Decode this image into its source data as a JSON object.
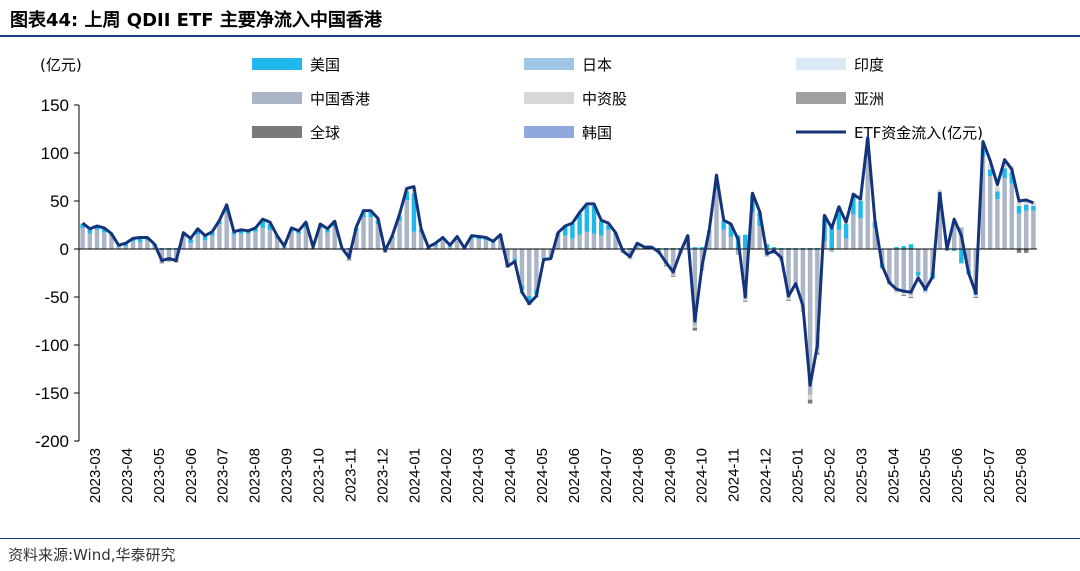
{
  "header": {
    "title": "图表44:  上周 QDII ETF 主要净流入中国香港"
  },
  "footer": {
    "source": "资料来源:Wind,华泰研究"
  },
  "chart_data": {
    "type": "bar",
    "title": "上周 QDII ETF 主要净流入中国香港",
    "ylabel": "(亿元)",
    "xlabel": "",
    "ylim": [
      -200,
      150
    ],
    "yticks": [
      150,
      100,
      50,
      0,
      -50,
      -100,
      -150,
      -200
    ],
    "month_labels": [
      "2023-03",
      "2023-04",
      "2023-05",
      "2023-06",
      "2023-07",
      "2023-08",
      "2023-09",
      "2023-10",
      "2023-11",
      "2023-12",
      "2024-01",
      "2024-02",
      "2024-03",
      "2024-04",
      "2024-05",
      "2024-06",
      "2024-07",
      "2024-08",
      "2024-09",
      "2024-10",
      "2024-11",
      "2024-12",
      "2025-01",
      "2025-02",
      "2025-03",
      "2025-04",
      "2025-05",
      "2025-06",
      "2025-07",
      "2025-08"
    ],
    "legend": [
      {
        "name": "美国",
        "color": "#1fb8e8",
        "kind": "bar"
      },
      {
        "name": "日本",
        "color": "#9ec7e6",
        "kind": "bar"
      },
      {
        "name": "印度",
        "color": "#dbe9f6",
        "kind": "bar"
      },
      {
        "name": "中国香港",
        "color": "#acb5c5",
        "kind": "bar"
      },
      {
        "name": "中资股",
        "color": "#d7d7d7",
        "kind": "bar"
      },
      {
        "name": "亚洲",
        "color": "#a0a0a0",
        "kind": "bar"
      },
      {
        "name": "全球",
        "color": "#7a7a7a",
        "kind": "bar"
      },
      {
        "name": "韩国",
        "color": "#8fa8dd",
        "kind": "bar"
      },
      {
        "name": "ETF资金流入(亿元)",
        "color": "#13347a",
        "kind": "line"
      }
    ],
    "etf_flow": [
      27,
      21,
      24,
      22,
      16,
      4,
      6,
      11,
      12,
      12,
      5,
      -12,
      -10,
      -12,
      17,
      11,
      21,
      14,
      18,
      30,
      46,
      18,
      20,
      19,
      22,
      31,
      28,
      14,
      3,
      22,
      19,
      28,
      2,
      26,
      21,
      29,
      1,
      -9,
      23,
      40,
      40,
      32,
      -2,
      14,
      36,
      63,
      65,
      21,
      2,
      6,
      12,
      4,
      13,
      1,
      14,
      13,
      12,
      8,
      15,
      -18,
      -13,
      -45,
      -57,
      -49,
      -11,
      -10,
      17,
      24,
      27,
      38,
      47,
      47,
      30,
      27,
      17,
      -2,
      -8,
      6,
      2,
      2,
      -3,
      -14,
      -24,
      -3,
      14,
      -75,
      -17,
      20,
      77,
      30,
      26,
      10,
      -50,
      58,
      39,
      -5,
      -2,
      -9,
      -49,
      -36,
      -59,
      -142,
      -101,
      35,
      22,
      44,
      28,
      57,
      52,
      116,
      30,
      -17,
      -35,
      -42,
      -44,
      -45,
      -30,
      -42,
      -29,
      58,
      0,
      31,
      14,
      -25,
      -46,
      112,
      92,
      67,
      93,
      83,
      50,
      51,
      48
    ],
    "bars": {
      "us": [
        4,
        4,
        3,
        4,
        1,
        1,
        2,
        2,
        4,
        2,
        2,
        1,
        1,
        1,
        2,
        4,
        5,
        4,
        3,
        3,
        6,
        2,
        3,
        2,
        3,
        7,
        6,
        2,
        1,
        3,
        2,
        4,
        1,
        3,
        3,
        4,
        1,
        1,
        3,
        5,
        5,
        4,
        1,
        2,
        5,
        9,
        40,
        3,
        1,
        2,
        2,
        1,
        2,
        1,
        2,
        2,
        2,
        1,
        2,
        -2,
        -2,
        -5,
        -6,
        -5,
        -1,
        -1,
        3,
        9,
        15,
        22,
        27,
        29,
        15,
        5,
        2,
        1,
        1,
        1,
        1,
        1,
        1,
        1,
        1,
        1,
        2,
        2,
        2,
        2,
        7,
        9,
        12,
        14,
        15,
        18,
        14,
        5,
        2,
        1,
        1,
        1,
        1,
        1,
        1,
        25,
        23,
        23,
        15,
        20,
        18,
        12,
        6,
        -5,
        -3,
        2,
        3,
        5,
        -4,
        -4,
        -6,
        3,
        1,
        -2,
        -15,
        -3,
        -5,
        7,
        7,
        8,
        10,
        12,
        8,
        6,
        5,
        4
      ],
      "hk": [
        22,
        16,
        20,
        17,
        14,
        2,
        3,
        8,
        7,
        9,
        3,
        -14,
        -12,
        -13,
        14,
        6,
        15,
        9,
        14,
        26,
        38,
        15,
        16,
        16,
        18,
        22,
        20,
        11,
        1,
        18,
        16,
        22,
        0,
        22,
        17,
        23,
        -1,
        -11,
        19,
        33,
        33,
        26,
        -4,
        11,
        29,
        51,
        18,
        17,
        -1,
        3,
        9,
        2,
        10,
        -1,
        11,
        10,
        9,
        6,
        12,
        -15,
        -10,
        -38,
        -49,
        -42,
        -9,
        -8,
        13,
        14,
        11,
        15,
        18,
        16,
        14,
        20,
        14,
        -4,
        -10,
        4,
        0,
        0,
        -5,
        -16,
        -27,
        -5,
        11,
        -80,
        -20,
        17,
        62,
        20,
        13,
        -6,
        -52,
        38,
        24,
        -8,
        -5,
        -12,
        -51,
        -38,
        -62,
        -152,
        -105,
        8,
        -3,
        20,
        11,
        36,
        32,
        96,
        22,
        -15,
        -33,
        -44,
        -46,
        -48,
        -24,
        -40,
        -25,
        56,
        -2,
        30,
        22,
        -23,
        -43,
        96,
        76,
        52,
        74,
        68,
        37,
        40,
        40
      ],
      "cn": [
        1,
        1,
        1,
        1,
        1,
        0,
        1,
        1,
        1,
        1,
        0,
        0,
        0,
        0,
        1,
        1,
        1,
        1,
        1,
        1,
        2,
        1,
        1,
        1,
        1,
        2,
        2,
        1,
        0,
        1,
        1,
        2,
        0,
        1,
        1,
        2,
        0,
        0,
        1,
        2,
        2,
        2,
        0,
        1,
        2,
        3,
        7,
        1,
        0,
        1,
        1,
        0,
        1,
        0,
        1,
        1,
        1,
        1,
        1,
        -1,
        -1,
        -2,
        -2,
        -2,
        -1,
        -1,
        1,
        1,
        1,
        1,
        2,
        2,
        1,
        2,
        1,
        0,
        -1,
        1,
        1,
        1,
        0,
        -1,
        -1,
        0,
        1,
        -2,
        -1,
        1,
        8,
        1,
        1,
        1,
        -2,
        2,
        1,
        0,
        0,
        0,
        -2,
        -1,
        -2,
        -5,
        -3,
        2,
        2,
        2,
        2,
        3,
        2,
        8,
        2,
        -1,
        -1,
        -2,
        -2,
        -2,
        -1,
        -2,
        -1,
        3,
        0,
        1,
        1,
        -1,
        -2,
        8,
        6,
        5,
        6,
        6,
        4,
        4,
        4
      ],
      "gl": [
        0,
        0,
        0,
        0,
        0,
        0,
        0,
        0,
        0,
        0,
        0,
        -1,
        -1,
        -1,
        0,
        0,
        0,
        0,
        0,
        0,
        0,
        0,
        0,
        0,
        0,
        0,
        0,
        0,
        0,
        0,
        0,
        0,
        0,
        0,
        0,
        0,
        0,
        -1,
        0,
        0,
        0,
        0,
        0,
        0,
        0,
        0,
        0,
        0,
        0,
        0,
        0,
        0,
        0,
        0,
        0,
        0,
        0,
        0,
        0,
        -1,
        -1,
        -1,
        -1,
        -1,
        0,
        0,
        0,
        0,
        0,
        0,
        0,
        0,
        0,
        0,
        0,
        0,
        0,
        0,
        0,
        0,
        0,
        -1,
        -1,
        0,
        0,
        -3,
        -1,
        0,
        0,
        0,
        0,
        0,
        -1,
        0,
        0,
        0,
        0,
        0,
        -1,
        -1,
        -1,
        -4,
        -2,
        0,
        0,
        0,
        0,
        0,
        0,
        0,
        0,
        0,
        0,
        0,
        -1,
        -1,
        0,
        0,
        0,
        0,
        0,
        0,
        0,
        0,
        -1,
        0,
        0,
        0,
        0,
        0,
        -4,
        -4
      ]
    }
  }
}
